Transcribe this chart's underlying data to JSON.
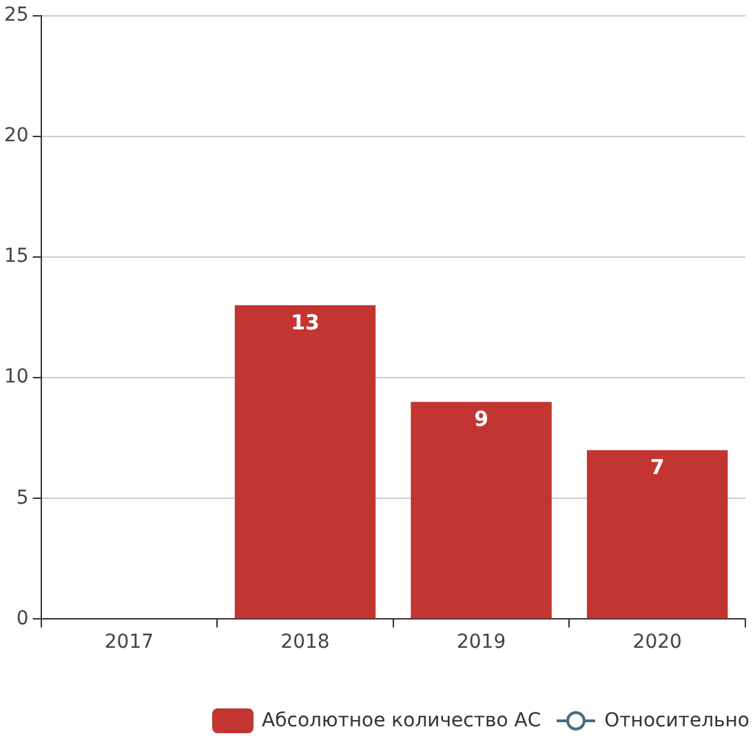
{
  "chart_data": {
    "type": "bar",
    "categories": [
      "2017",
      "2018",
      "2019",
      "2020"
    ],
    "series": [
      {
        "name": "Абсолютное количество АС",
        "color": "#c23531",
        "values": [
          null,
          13,
          9,
          7
        ]
      },
      {
        "name": "Относительно",
        "type": "line",
        "color": "#4b6a80",
        "values": [
          null,
          null,
          null,
          null
        ]
      }
    ],
    "ylim": [
      0,
      25
    ],
    "yticks": [
      0,
      5,
      10,
      15,
      20,
      25
    ],
    "grid": "y",
    "legend": "bottom",
    "data_labels": true,
    "marker": "circle"
  }
}
